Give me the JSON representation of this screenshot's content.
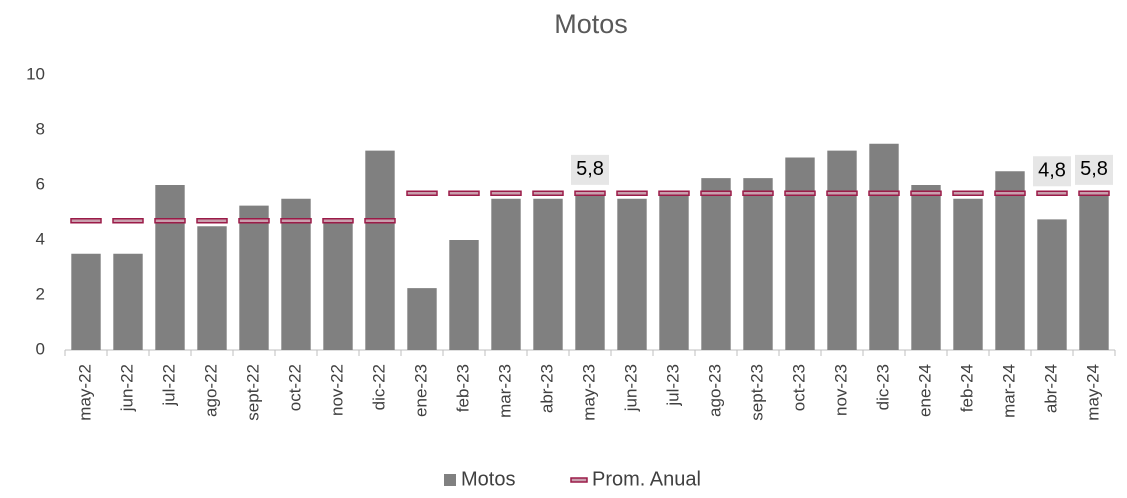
{
  "chart_data": {
    "type": "bar",
    "title": "Motos",
    "categories": [
      "may-22",
      "jun-22",
      "jul-22",
      "ago-22",
      "sept-22",
      "oct-22",
      "nov-22",
      "dic-22",
      "ene-23",
      "feb-23",
      "mar-23",
      "abr-23",
      "may-23",
      "jun-23",
      "jul-23",
      "ago-23",
      "sept-23",
      "oct-23",
      "nov-23",
      "dic-23",
      "ene-24",
      "feb-24",
      "mar-24",
      "abr-24",
      "may-24"
    ],
    "series": [
      {
        "name": "Motos",
        "color": "#808080",
        "values": [
          3.5,
          3.5,
          6.0,
          4.5,
          5.25,
          5.5,
          4.75,
          7.25,
          2.25,
          4.0,
          5.5,
          5.5,
          5.75,
          5.5,
          5.75,
          6.25,
          6.25,
          7.0,
          7.25,
          7.5,
          6.0,
          5.5,
          6.5,
          4.75,
          5.75
        ],
        "value_labels": [
          null,
          null,
          null,
          null,
          null,
          null,
          null,
          null,
          null,
          null,
          null,
          null,
          "5,8",
          null,
          null,
          null,
          null,
          null,
          null,
          null,
          null,
          null,
          null,
          "4,8",
          "5,8"
        ]
      },
      {
        "name": "Prom. Anual",
        "color": "#9b1b48",
        "marker": "dash",
        "values": [
          4.7,
          4.7,
          4.7,
          4.7,
          4.7,
          4.7,
          4.7,
          4.7,
          5.7,
          5.7,
          5.7,
          5.7,
          5.7,
          5.7,
          5.7,
          5.7,
          5.7,
          5.7,
          5.7,
          5.7,
          5.7,
          5.7,
          5.7,
          5.7,
          5.7
        ]
      }
    ],
    "ylim": [
      0,
      10
    ],
    "yticks": [
      0,
      2,
      4,
      6,
      8,
      10
    ],
    "grid": false,
    "legend": "bottom"
  }
}
